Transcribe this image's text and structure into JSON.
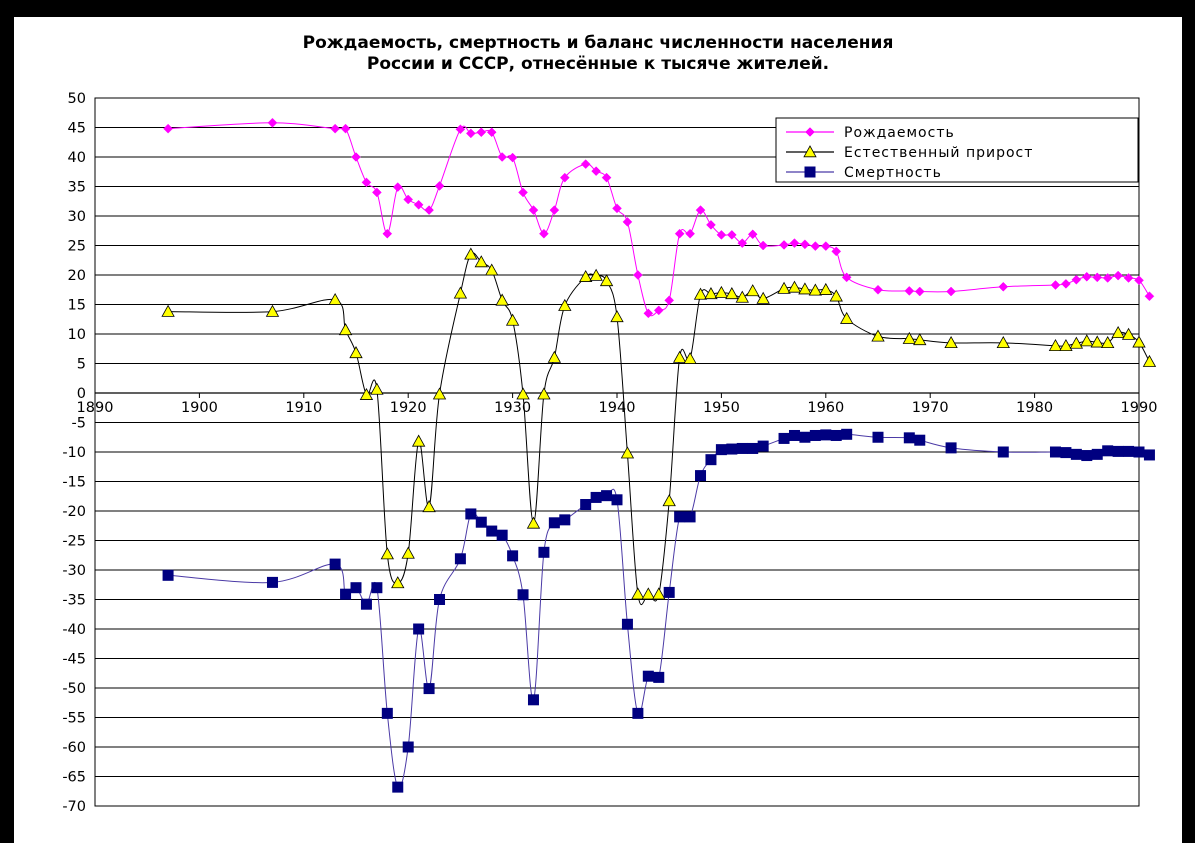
{
  "chart_data": {
    "type": "line",
    "title": "Рождаемость, смертность и баланс численности населения",
    "subtitle": "России и СССР, отнесённые к тысяче жителей.",
    "xlabel": "",
    "ylabel": "",
    "xlim": [
      1890,
      1990
    ],
    "ylim": [
      -70,
      50
    ],
    "x_ticks": [
      1890,
      1900,
      1910,
      1920,
      1930,
      1940,
      1950,
      1960,
      1970,
      1980,
      1990
    ],
    "y_ticks": [
      50,
      45,
      40,
      35,
      30,
      25,
      20,
      15,
      10,
      5,
      0,
      -5,
      -10,
      -15,
      -20,
      -25,
      -30,
      -35,
      -40,
      -45,
      -50,
      -55,
      -60,
      -65,
      -70
    ],
    "grid": "horizontal",
    "legend_position": "top-right",
    "series": [
      {
        "name": "Рождаемость",
        "color": "#ff00ff",
        "marker": "diamond",
        "x": [
          1897,
          1907,
          1913,
          1914,
          1915,
          1916,
          1917,
          1918,
          1919,
          1920,
          1921,
          1922,
          1923,
          1925,
          1926,
          1927,
          1928,
          1929,
          1930,
          1931,
          1932,
          1933,
          1934,
          1935,
          1937,
          1938,
          1939,
          1940,
          1941,
          1942,
          1943,
          1944,
          1945,
          1946,
          1947,
          1948,
          1949,
          1950,
          1951,
          1952,
          1953,
          1954,
          1956,
          1957,
          1958,
          1959,
          1960,
          1961,
          1962,
          1965,
          1968,
          1969,
          1972,
          1977,
          1982,
          1983,
          1984,
          1985,
          1986,
          1987,
          1988,
          1989,
          1990,
          1991
        ],
        "values": [
          44.8,
          45.8,
          44.8,
          44.8,
          40,
          35.7,
          34,
          27,
          34.9,
          32.8,
          31.9,
          31,
          35.1,
          44.7,
          44,
          44.2,
          44.2,
          40,
          39.9,
          34,
          31,
          27,
          31,
          36.5,
          38.8,
          37.6,
          36.5,
          31.3,
          29,
          20,
          13.5,
          14,
          15.7,
          27,
          27,
          31,
          28.5,
          26.8,
          26.8,
          25.4,
          26.9,
          25,
          25.1,
          25.4,
          25.2,
          24.9,
          24.9,
          24,
          19.6,
          17.5,
          17.3,
          17.2,
          17.2,
          18,
          18.3,
          18.5,
          19.2,
          19.7,
          19.6,
          19.5,
          19.9,
          19.5,
          19.1,
          16.4
        ]
      },
      {
        "name": "Естественный прирост",
        "color": "#000000",
        "markerColor": "#ffff00",
        "marker": "triangle",
        "x": [
          1897,
          1907,
          1913,
          1914,
          1915,
          1916,
          1917,
          1918,
          1919,
          1920,
          1921,
          1922,
          1923,
          1925,
          1926,
          1927,
          1928,
          1929,
          1930,
          1931,
          1932,
          1933,
          1934,
          1935,
          1937,
          1938,
          1939,
          1940,
          1941,
          1942,
          1943,
          1944,
          1945,
          1946,
          1947,
          1948,
          1949,
          1950,
          1951,
          1952,
          1953,
          1954,
          1956,
          1957,
          1958,
          1959,
          1960,
          1961,
          1962,
          1965,
          1968,
          1969,
          1972,
          1977,
          1982,
          1983,
          1984,
          1985,
          1986,
          1987,
          1988,
          1989,
          1990,
          1991
        ],
        "values": [
          13.8,
          13.8,
          15.8,
          10.7,
          6.8,
          -0.3,
          0.6,
          -27.3,
          -32.2,
          -27.2,
          -8.2,
          -19.3,
          -0.2,
          16.9,
          23.5,
          22.2,
          20.8,
          15.7,
          12.3,
          -0.2,
          -22.1,
          -0.2,
          6,
          14.8,
          19.7,
          19.9,
          19,
          12.9,
          -10.2,
          -34.1,
          -34.1,
          -34.1,
          -18.3,
          6,
          5.8,
          16.7,
          16.8,
          17,
          16.8,
          16.2,
          17.3,
          16,
          17.7,
          17.9,
          17.6,
          17.4,
          17.5,
          16.4,
          12.6,
          9.6,
          9.2,
          9,
          8.5,
          8.5,
          8,
          8,
          8.4,
          8.8,
          8.6,
          8.5,
          10.2,
          9.9,
          8.6,
          5.3
        ]
      },
      {
        "name": "Смертность",
        "color": "#000080",
        "marker": "square",
        "x": [
          1897,
          1907,
          1913,
          1914,
          1915,
          1916,
          1917,
          1918,
          1919,
          1920,
          1921,
          1922,
          1923,
          1925,
          1926,
          1927,
          1928,
          1929,
          1930,
          1931,
          1932,
          1933,
          1934,
          1935,
          1937,
          1938,
          1939,
          1940,
          1941,
          1942,
          1943,
          1944,
          1945,
          1946,
          1947,
          1948,
          1949,
          1950,
          1951,
          1952,
          1953,
          1954,
          1956,
          1957,
          1958,
          1959,
          1960,
          1961,
          1962,
          1965,
          1968,
          1969,
          1972,
          1977,
          1982,
          1983,
          1984,
          1985,
          1986,
          1987,
          1988,
          1989,
          1990,
          1991
        ],
        "values": [
          -30.9,
          -32.1,
          -29,
          -34.1,
          -33,
          -35.8,
          -33,
          -54.3,
          -66.8,
          -60,
          -40,
          -50.1,
          -35,
          -28.1,
          -20.5,
          -21.9,
          -23.4,
          -24.1,
          -27.6,
          -34.2,
          -52,
          -27,
          -22,
          -21.5,
          -18.9,
          -17.7,
          -17.4,
          -18.1,
          -39.2,
          -54.3,
          -48,
          -48.2,
          -33.8,
          -21,
          -21,
          -14,
          -11.3,
          -9.6,
          -9.5,
          -9.4,
          -9.4,
          -9,
          -7.7,
          -7.2,
          -7.5,
          -7.2,
          -7.1,
          -7.2,
          -7,
          -7.5,
          -7.6,
          -8,
          -9.3,
          -10,
          -10,
          -10.1,
          -10.4,
          -10.6,
          -10.4,
          -9.8,
          -9.9,
          -9.9,
          -10,
          -10.5
        ]
      }
    ]
  }
}
